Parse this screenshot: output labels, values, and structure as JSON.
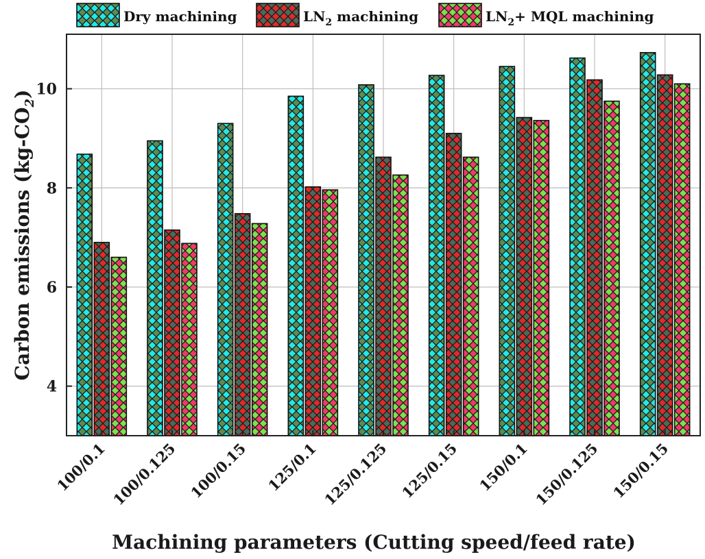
{
  "chart_data": {
    "type": "bar",
    "categories": [
      "100/0.1",
      "100/0.125",
      "100/0.15",
      "125/0.1",
      "125/0.125",
      "125/0.15",
      "150/0.1",
      "150/0.125",
      "150/0.15"
    ],
    "series": [
      {
        "name_main": "Dry machining",
        "name_sub": "",
        "name_tail": "",
        "values": [
          8.68,
          8.95,
          9.3,
          9.85,
          10.08,
          10.27,
          10.45,
          10.62,
          10.73
        ],
        "colors": [
          "#22e8e8",
          "#5f8a50"
        ]
      },
      {
        "name_main": "LN",
        "name_sub": "2",
        "name_tail": " machining",
        "values": [
          6.9,
          7.15,
          7.48,
          8.02,
          8.62,
          9.1,
          9.42,
          10.18,
          10.28
        ],
        "colors": [
          "#e02a2a",
          "#4a6a5a"
        ]
      },
      {
        "name_main": "LN",
        "name_sub": "2",
        "name_tail": "+ MQL machining",
        "values": [
          6.6,
          6.88,
          7.28,
          7.96,
          8.26,
          8.62,
          9.36,
          9.75,
          10.1
        ],
        "colors": [
          "#ee3a6a",
          "#7ee050"
        ]
      }
    ],
    "xlabel": "Machining parameters (Cutting speed/feed rate)",
    "ylabel_main": "Carbon emissions (kg-CO",
    "ylabel_sub": "2",
    "ylabel_tail": ")",
    "yticks": [
      4,
      6,
      8,
      10
    ],
    "ylim": [
      3.0,
      11.1
    ],
    "grid": true,
    "legend_position": "top"
  }
}
